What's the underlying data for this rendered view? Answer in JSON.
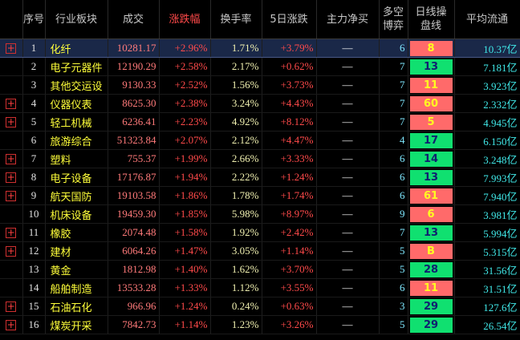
{
  "table": {
    "header": [
      "序号",
      "行业板块",
      "成交",
      "涨跌幅",
      "换手率",
      "5日涨跌",
      "主力净买",
      "多空\n博弈",
      "日线操\n盘线",
      "平均流通"
    ],
    "highlight_header": 3,
    "rows": [
      {
        "expandable": true,
        "signal": "red",
        "cells": [
          "1",
          "化纤",
          "10281.17",
          "+2.96%",
          "1.71%",
          "+3.79%",
          "—",
          "6",
          "8",
          "10.37亿"
        ]
      },
      {
        "expandable": false,
        "signal": "green",
        "cells": [
          "2",
          "电子元器件",
          "12190.29",
          "+2.58%",
          "2.17%",
          "+0.62%",
          "—",
          "7",
          "13",
          "7.181亿"
        ]
      },
      {
        "expandable": false,
        "signal": "red",
        "cells": [
          "3",
          "其他交运设",
          "9130.33",
          "+2.52%",
          "1.56%",
          "+3.73%",
          "—",
          "7",
          "11",
          "3.923亿"
        ]
      },
      {
        "expandable": true,
        "signal": "red",
        "cells": [
          "4",
          "仪器仪表",
          "8625.30",
          "+2.38%",
          "3.24%",
          "+4.43%",
          "—",
          "7",
          "60",
          "2.332亿"
        ]
      },
      {
        "expandable": true,
        "signal": "red",
        "cells": [
          "5",
          "轻工机械",
          "6236.41",
          "+2.23%",
          "4.92%",
          "+8.12%",
          "—",
          "7",
          "5",
          "4.945亿"
        ]
      },
      {
        "expandable": false,
        "signal": "green",
        "cells": [
          "6",
          "旅游综合",
          "51323.84",
          "+2.07%",
          "2.12%",
          "+4.47%",
          "—",
          "4",
          "17",
          "6.150亿"
        ]
      },
      {
        "expandable": true,
        "signal": "green",
        "cells": [
          "7",
          "塑料",
          "755.37",
          "+1.99%",
          "2.66%",
          "+3.33%",
          "—",
          "6",
          "14",
          "3.248亿"
        ]
      },
      {
        "expandable": true,
        "signal": "green",
        "cells": [
          "8",
          "电子设备",
          "17176.87",
          "+1.94%",
          "2.22%",
          "+1.24%",
          "—",
          "6",
          "13",
          "7.993亿"
        ]
      },
      {
        "expandable": true,
        "signal": "red",
        "cells": [
          "9",
          "航天国防",
          "19103.58",
          "+1.86%",
          "1.78%",
          "+1.74%",
          "—",
          "6",
          "61",
          "7.940亿"
        ]
      },
      {
        "expandable": false,
        "signal": "red",
        "cells": [
          "10",
          "机床设备",
          "19459.30",
          "+1.85%",
          "5.98%",
          "+8.97%",
          "—",
          "9",
          "6",
          "3.981亿"
        ]
      },
      {
        "expandable": true,
        "signal": "green",
        "cells": [
          "11",
          "橡胶",
          "2074.48",
          "+1.58%",
          "1.92%",
          "+2.42%",
          "—",
          "7",
          "13",
          "5.994亿"
        ]
      },
      {
        "expandable": true,
        "signal": "red",
        "cells": [
          "12",
          "建材",
          "6064.26",
          "+1.47%",
          "3.05%",
          "+1.14%",
          "—",
          "5",
          "B",
          "5.315亿"
        ]
      },
      {
        "expandable": false,
        "signal": "green",
        "cells": [
          "13",
          "黄金",
          "1812.98",
          "+1.40%",
          "1.62%",
          "+3.70%",
          "—",
          "5",
          "28",
          "31.56亿"
        ]
      },
      {
        "expandable": false,
        "signal": "red",
        "cells": [
          "14",
          "船舶制造",
          "13533.28",
          "+1.33%",
          "1.12%",
          "+3.55%",
          "—",
          "6",
          "11",
          "31.51亿"
        ]
      },
      {
        "expandable": true,
        "signal": "green",
        "cells": [
          "15",
          "石油石化",
          "966.96",
          "+1.24%",
          "0.24%",
          "+0.63%",
          "—",
          "3",
          "29",
          "127.6亿"
        ]
      },
      {
        "expandable": true,
        "signal": "green",
        "cells": [
          "16",
          "煤炭开采",
          "7842.73",
          "+1.14%",
          "1.23%",
          "+3.26%",
          "—",
          "5",
          "29",
          "26.54亿"
        ]
      }
    ]
  }
}
